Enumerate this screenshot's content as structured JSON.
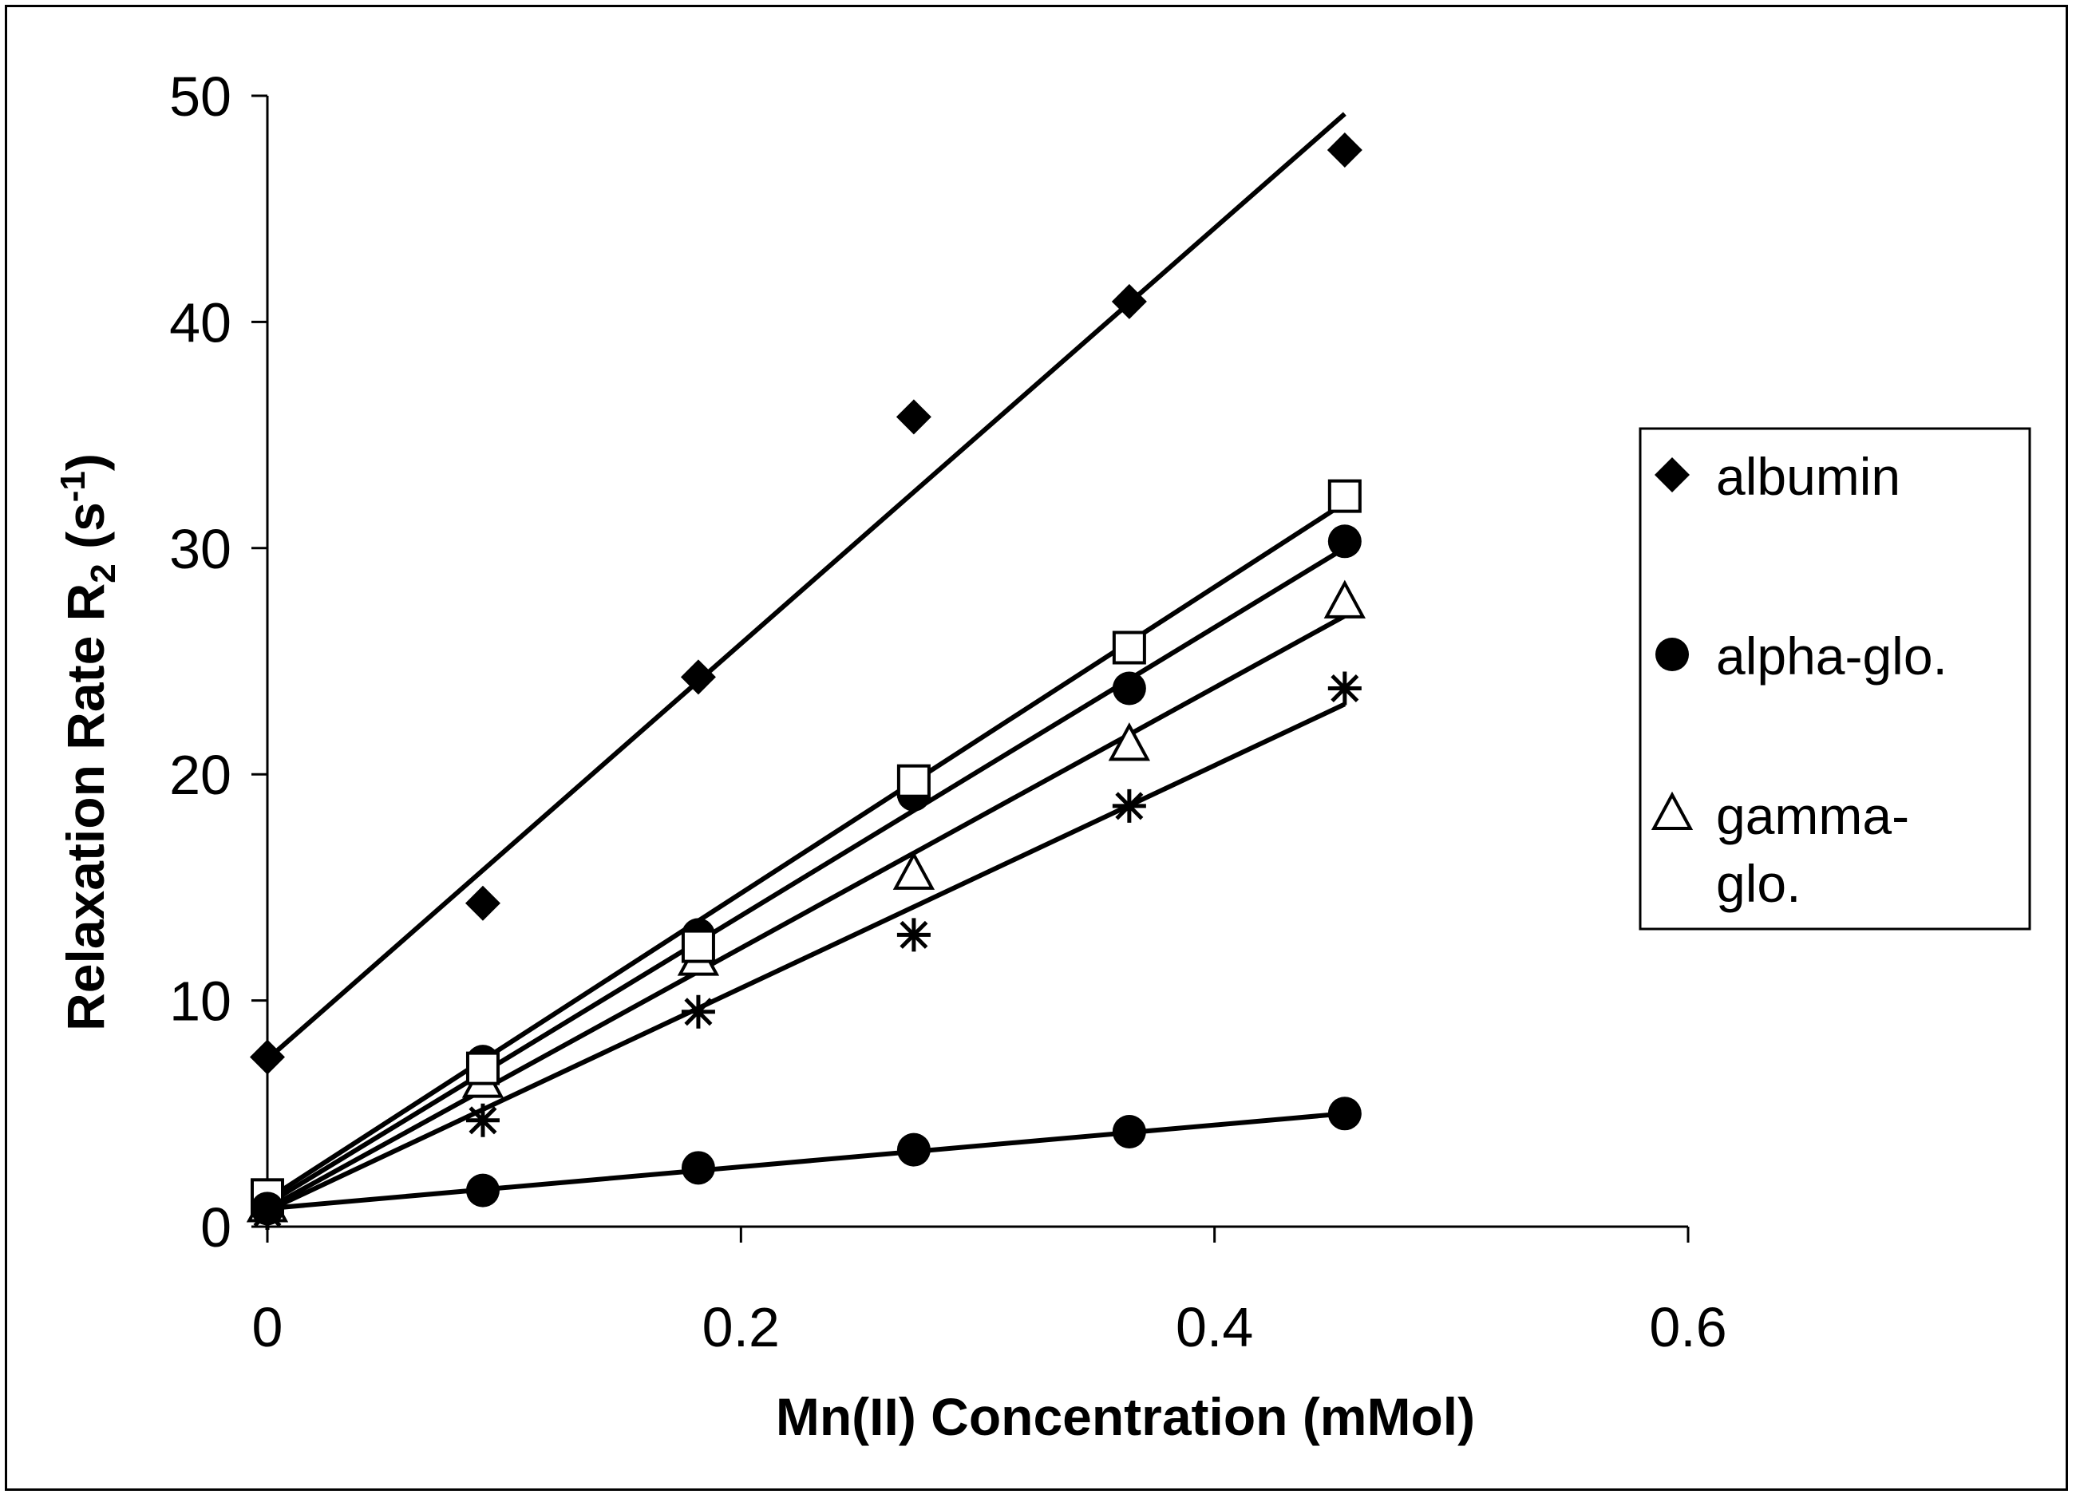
{
  "chart_data": {
    "type": "scatter",
    "title": "",
    "xlabel": "Mn(II) Concentration (mMol)",
    "ylabel": {
      "main": "Relaxation Rate R",
      "sub": "2",
      "open": " (s",
      "sup": "-1",
      "close": ")"
    },
    "xlim": [
      0,
      0.6
    ],
    "ylim": [
      0,
      50
    ],
    "xticks": [
      0,
      0.2,
      0.4,
      0.6
    ],
    "xtick_labels": [
      "0",
      "0.2",
      "0.4",
      "0.6"
    ],
    "yticks": [
      0,
      10,
      20,
      30,
      40,
      50
    ],
    "ytick_labels": [
      "0",
      "10",
      "20",
      "30",
      "40",
      "50"
    ],
    "grid": false,
    "legend_position": "right",
    "series": [
      {
        "name": "albumin",
        "marker": "diamond",
        "x": [
          0,
          0.091,
          0.182,
          0.273,
          0.364,
          0.455
        ],
        "y": [
          7.5,
          14.3,
          24.3,
          35.8,
          40.9,
          47.6
        ],
        "trend": [
          [
            0,
            7.4
          ],
          [
            0.455,
            49.2
          ]
        ]
      },
      {
        "name": "alpha-glo.",
        "marker": "circle",
        "x": [
          0,
          0.091,
          0.182,
          0.273,
          0.364,
          0.455
        ],
        "y": [
          1.1,
          7.3,
          12.9,
          19.1,
          23.8,
          30.3
        ],
        "trend": [
          [
            0,
            1.0
          ],
          [
            0.455,
            30.0
          ]
        ]
      },
      {
        "name": "gamma-glo.",
        "marker": "triangle-open",
        "x": [
          0,
          0.091,
          0.182,
          0.273,
          0.364,
          0.455
        ],
        "y": [
          0.9,
          6.4,
          11.8,
          15.6,
          21.3,
          27.6
        ],
        "trend": [
          [
            0,
            0.8
          ],
          [
            0.455,
            27.0
          ]
        ]
      },
      {
        "name": "",
        "marker": "square-open",
        "x": [
          0,
          0.091,
          0.182,
          0.273,
          0.364,
          0.455
        ],
        "y": [
          1.4,
          7.0,
          12.4,
          19.7,
          25.6,
          32.3
        ],
        "trend": [
          [
            0,
            1.2
          ],
          [
            0.455,
            32.0
          ]
        ]
      },
      {
        "name": "",
        "marker": "star",
        "x": [
          0,
          0.091,
          0.182,
          0.273,
          0.364,
          0.455
        ],
        "y": [
          0.6,
          4.7,
          9.5,
          12.9,
          18.6,
          23.8
        ],
        "trend": [
          [
            0,
            0.7
          ],
          [
            0.455,
            23.1
          ]
        ]
      },
      {
        "name": "",
        "marker": "circle",
        "x": [
          0,
          0.091,
          0.182,
          0.273,
          0.364,
          0.455
        ],
        "y": [
          0.8,
          1.6,
          2.6,
          3.4,
          4.2,
          5.0
        ],
        "trend": [
          [
            0,
            0.8
          ],
          [
            0.455,
            5.0
          ]
        ]
      }
    ],
    "legend": [
      {
        "marker": "diamond",
        "lines": [
          "albumin"
        ]
      },
      {
        "marker": "circle",
        "lines": [
          "alpha-glo."
        ]
      },
      {
        "marker": "triangle-open",
        "lines": [
          "gamma-",
          "glo."
        ]
      }
    ]
  }
}
